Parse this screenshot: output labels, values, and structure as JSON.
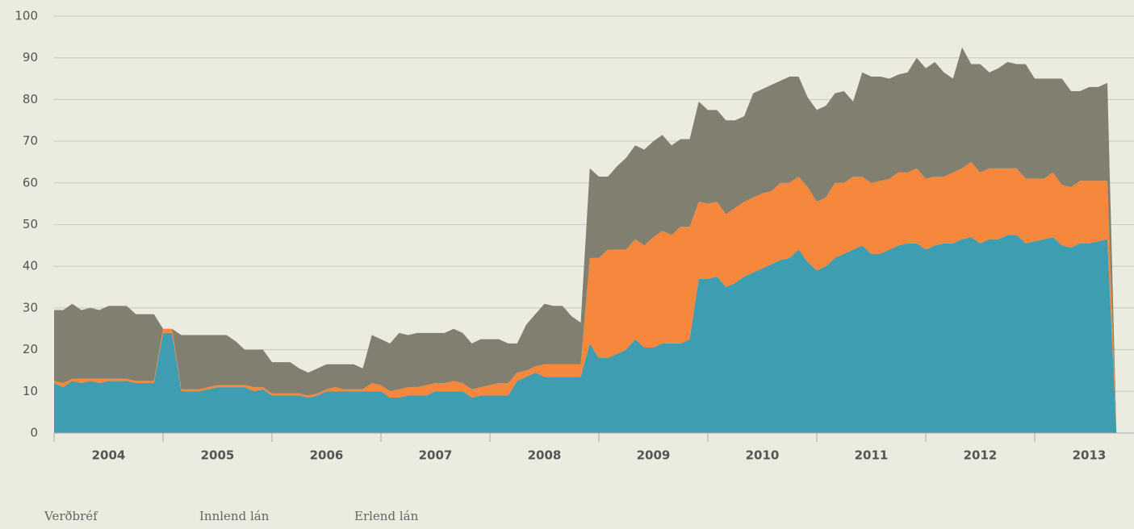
{
  "chart_data": {
    "type": "area",
    "stacked": true,
    "categories": [
      "2004",
      null,
      null,
      null,
      null,
      null,
      null,
      null,
      null,
      null,
      null,
      null,
      "2005",
      null,
      null,
      null,
      null,
      null,
      null,
      null,
      null,
      null,
      null,
      null,
      "2006",
      null,
      null,
      null,
      null,
      null,
      null,
      null,
      null,
      null,
      null,
      null,
      "2007",
      null,
      null,
      null,
      null,
      null,
      null,
      null,
      null,
      null,
      null,
      null,
      "2008",
      null,
      null,
      null,
      null,
      null,
      null,
      null,
      null,
      null,
      null,
      null,
      "2009",
      null,
      null,
      null,
      null,
      null,
      null,
      null,
      null,
      null,
      null,
      null,
      "2010",
      null,
      null,
      null,
      null,
      null,
      null,
      null,
      null,
      null,
      null,
      null,
      "2011",
      null,
      null,
      null,
      null,
      null,
      null,
      null,
      null,
      null,
      null,
      null,
      "2012",
      null,
      null,
      null,
      null,
      null,
      null,
      null,
      null,
      null,
      null,
      null,
      "2013",
      null,
      null,
      null,
      null,
      null,
      null,
      null,
      null,
      null
    ],
    "series": [
      {
        "name": "Verðbréf",
        "color": "#3f9db1",
        "values": [
          12,
          11,
          12.5,
          12,
          12.5,
          12,
          12.5,
          12.5,
          12.5,
          12,
          12,
          12,
          24,
          24,
          10,
          10,
          10,
          10.5,
          11,
          11,
          11,
          11,
          10,
          10.5,
          9,
          9,
          9,
          9,
          8.5,
          9,
          10,
          10,
          10,
          10,
          10,
          10,
          10,
          8.5,
          8.5,
          9,
          9,
          9,
          10,
          10,
          10,
          10,
          8.5,
          9,
          9,
          9,
          9,
          12.5,
          13.5,
          14.5,
          13.5,
          13.5,
          13.5,
          13.5,
          13.5,
          21.5,
          18,
          18,
          19,
          20,
          22.5,
          20.5,
          20.5,
          21.5,
          21.5,
          21.5,
          22.5,
          37,
          37,
          37.5,
          35,
          36,
          37.5,
          38.5,
          39.5,
          40.5,
          41.5,
          42,
          44,
          41,
          39,
          40,
          42,
          43,
          44,
          45,
          43,
          43,
          44,
          45,
          45.5,
          45.5,
          44,
          45,
          45.5,
          45.5,
          46.5,
          47,
          45.5,
          46.5,
          46.5,
          47.5,
          47.5,
          45.5,
          46,
          46.5,
          47,
          45,
          44.5,
          45.5,
          45.5,
          46,
          46.5,
          0
        ]
      },
      {
        "name": "Innlend lán",
        "color": "#f6883d",
        "values": [
          0.5,
          1,
          0.5,
          1,
          0.5,
          1,
          0.5,
          0.5,
          0.5,
          0.5,
          0.5,
          0.5,
          1,
          1,
          0.5,
          0.5,
          0.5,
          0.5,
          0.5,
          0.5,
          0.5,
          0.5,
          1,
          0.5,
          0.5,
          0.5,
          0.5,
          0.5,
          0.5,
          0.5,
          0.5,
          1,
          0.5,
          0.5,
          0.5,
          2,
          1.5,
          1.5,
          2,
          2,
          2,
          2.5,
          2,
          2,
          2.5,
          2,
          2,
          2,
          2.5,
          3,
          3,
          2,
          1.5,
          1.5,
          3,
          3,
          3,
          3,
          3,
          20.5,
          24,
          26,
          25,
          24,
          24,
          24.5,
          26.5,
          27,
          26,
          28,
          27,
          18.5,
          18,
          18,
          17.5,
          18,
          18,
          18,
          18,
          17.5,
          18.5,
          18,
          17.5,
          18,
          16.5,
          16.5,
          18,
          17,
          17.5,
          16.5,
          17,
          17.5,
          17,
          17.5,
          17,
          18,
          17,
          16.5,
          16,
          17,
          17,
          18,
          17,
          17,
          17,
          16,
          16,
          15.5,
          15,
          14.5,
          15.5,
          14.5,
          14.5,
          15,
          15,
          14.5,
          14,
          0
        ]
      },
      {
        "name": "Erlend lán",
        "color": "#817f6f",
        "values": [
          17,
          17.5,
          18,
          16.5,
          17,
          16.5,
          17.5,
          17.5,
          17.5,
          16,
          16,
          16,
          0,
          0,
          13,
          13,
          13,
          12.5,
          12,
          12,
          10.5,
          8.5,
          9,
          9,
          7.5,
          7.5,
          7.5,
          6,
          5.5,
          6,
          6,
          5.5,
          6,
          6,
          5,
          11.5,
          11,
          11.5,
          13.5,
          12.5,
          13,
          12.5,
          12,
          12,
          12.5,
          12,
          11,
          11.5,
          11,
          10.5,
          9.5,
          7,
          11,
          12.5,
          14.5,
          14,
          14,
          11.5,
          10,
          21.5,
          19.5,
          17.5,
          20,
          22,
          22.5,
          23,
          23,
          23,
          21.5,
          21,
          21,
          24,
          22.5,
          22,
          22.5,
          21,
          20.5,
          25,
          25,
          25.5,
          24.5,
          25.5,
          24,
          21.5,
          22,
          22,
          21.5,
          22,
          18,
          25,
          25.5,
          25,
          24,
          23.5,
          24,
          26.5,
          26.5,
          27.5,
          25,
          22.5,
          29,
          23.5,
          26,
          23,
          24,
          25.5,
          25,
          27.5,
          24,
          24,
          22.5,
          25.5,
          23,
          21.5,
          22.5,
          22.5,
          23.5,
          0
        ]
      }
    ],
    "ylim": [
      0,
      100
    ],
    "yticks": [
      0,
      10,
      20,
      30,
      40,
      50,
      60,
      70,
      80,
      90,
      100
    ],
    "grid": true
  }
}
